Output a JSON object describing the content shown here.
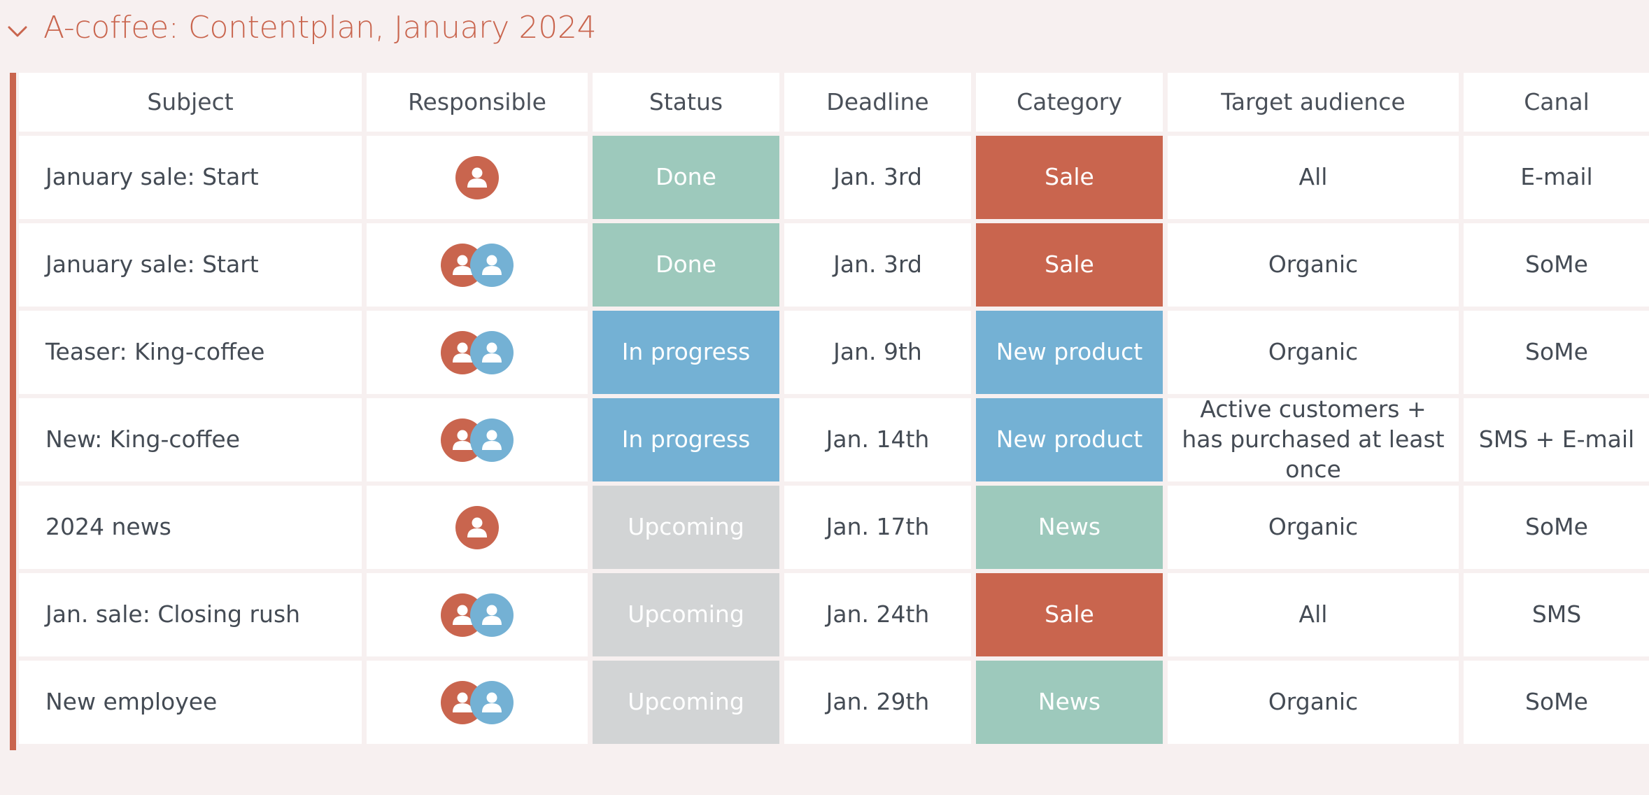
{
  "group": {
    "title": "A-coffee: Contentplan, January 2024",
    "chevron_icon": "chevron-down-icon",
    "accent_color": "#c9654e"
  },
  "columns": [
    "Subject",
    "Responsible",
    "Status",
    "Deadline",
    "Category",
    "Target audience",
    "Canal"
  ],
  "rows": [
    {
      "subject": "January sale: Start",
      "responsible": [
        "red"
      ],
      "status": "Done",
      "status_key": "done",
      "deadline": "Jan. 3rd",
      "category": "Sale",
      "category_key": "sale",
      "audience": "All",
      "canal": "E-mail"
    },
    {
      "subject": "January sale: Start",
      "responsible": [
        "red",
        "blue"
      ],
      "status": "Done",
      "status_key": "done",
      "deadline": "Jan. 3rd",
      "category": "Sale",
      "category_key": "sale",
      "audience": "Organic",
      "canal": "SoMe"
    },
    {
      "subject": "Teaser: King-coffee",
      "responsible": [
        "red",
        "blue"
      ],
      "status": "In progress",
      "status_key": "progress",
      "deadline": "Jan. 9th",
      "category": "New product",
      "category_key": "product",
      "audience": "Organic",
      "canal": "SoMe"
    },
    {
      "subject": "New: King-coffee",
      "responsible": [
        "red",
        "blue"
      ],
      "status": "In progress",
      "status_key": "progress",
      "deadline": "Jan. 14th",
      "category": "New product",
      "category_key": "product",
      "audience": "Active customers + has purchased at least once",
      "canal": "SMS + E-mail"
    },
    {
      "subject": "2024 news",
      "responsible": [
        "red"
      ],
      "status": "Upcoming",
      "status_key": "upcoming",
      "deadline": "Jan. 17th",
      "category": "News",
      "category_key": "news",
      "audience": "Organic",
      "canal": "SoMe"
    },
    {
      "subject": "Jan. sale: Closing rush",
      "responsible": [
        "red",
        "blue"
      ],
      "status": "Upcoming",
      "status_key": "upcoming",
      "deadline": "Jan. 24th",
      "category": "Sale",
      "category_key": "sale",
      "audience": "All",
      "canal": "SMS"
    },
    {
      "subject": "New employee",
      "responsible": [
        "red",
        "blue"
      ],
      "status": "Upcoming",
      "status_key": "upcoming",
      "deadline": "Jan. 29th",
      "category": "News",
      "category_key": "news",
      "audience": "Organic",
      "canal": "SoMe"
    }
  ],
  "colors": {
    "status_done": "#9dc9bc",
    "status_in_progress": "#74b1d4",
    "status_upcoming": "#d2d4d5",
    "category_sale": "#c9654e",
    "category_new_product": "#74b1d4",
    "category_news": "#9dc9bc",
    "avatar_red": "#c9654e",
    "avatar_blue": "#74b1d4"
  },
  "icons": {
    "avatar": "user-avatar-icon"
  }
}
